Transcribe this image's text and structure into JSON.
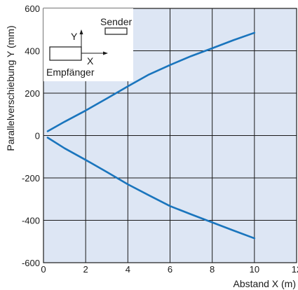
{
  "chart_data": {
    "type": "line",
    "xlabel": "Abstand X (m)",
    "ylabel": "Parallelverschiebung Y (mm)",
    "xlim": [
      0,
      12
    ],
    "ylim": [
      -600,
      600
    ],
    "xticks": [
      0,
      2,
      4,
      6,
      8,
      10,
      12
    ],
    "yticks": [
      600,
      400,
      200,
      0,
      -200,
      -400,
      -600
    ],
    "grid": true,
    "colors": {
      "plot_bg": "#dde6f4",
      "line": "#1a75bd",
      "grid": "#1a1a1a"
    },
    "series": [
      {
        "x": [
          0.2,
          1,
          2,
          3,
          4,
          5,
          6,
          7,
          8,
          9,
          10
        ],
        "values": [
          20,
          65,
          118,
          175,
          232,
          288,
          333,
          375,
          412,
          450,
          485
        ]
      },
      {
        "x": [
          0.2,
          1,
          2,
          3,
          4,
          5,
          6,
          7,
          8,
          9,
          10
        ],
        "values": [
          -10,
          -60,
          -115,
          -172,
          -230,
          -282,
          -333,
          -372,
          -410,
          -448,
          -485
        ]
      }
    ],
    "inset": {
      "sender_label": "Sender",
      "receiver_label": "Empfänger",
      "x_axis_label": "X",
      "y_axis_label": "Y"
    }
  }
}
